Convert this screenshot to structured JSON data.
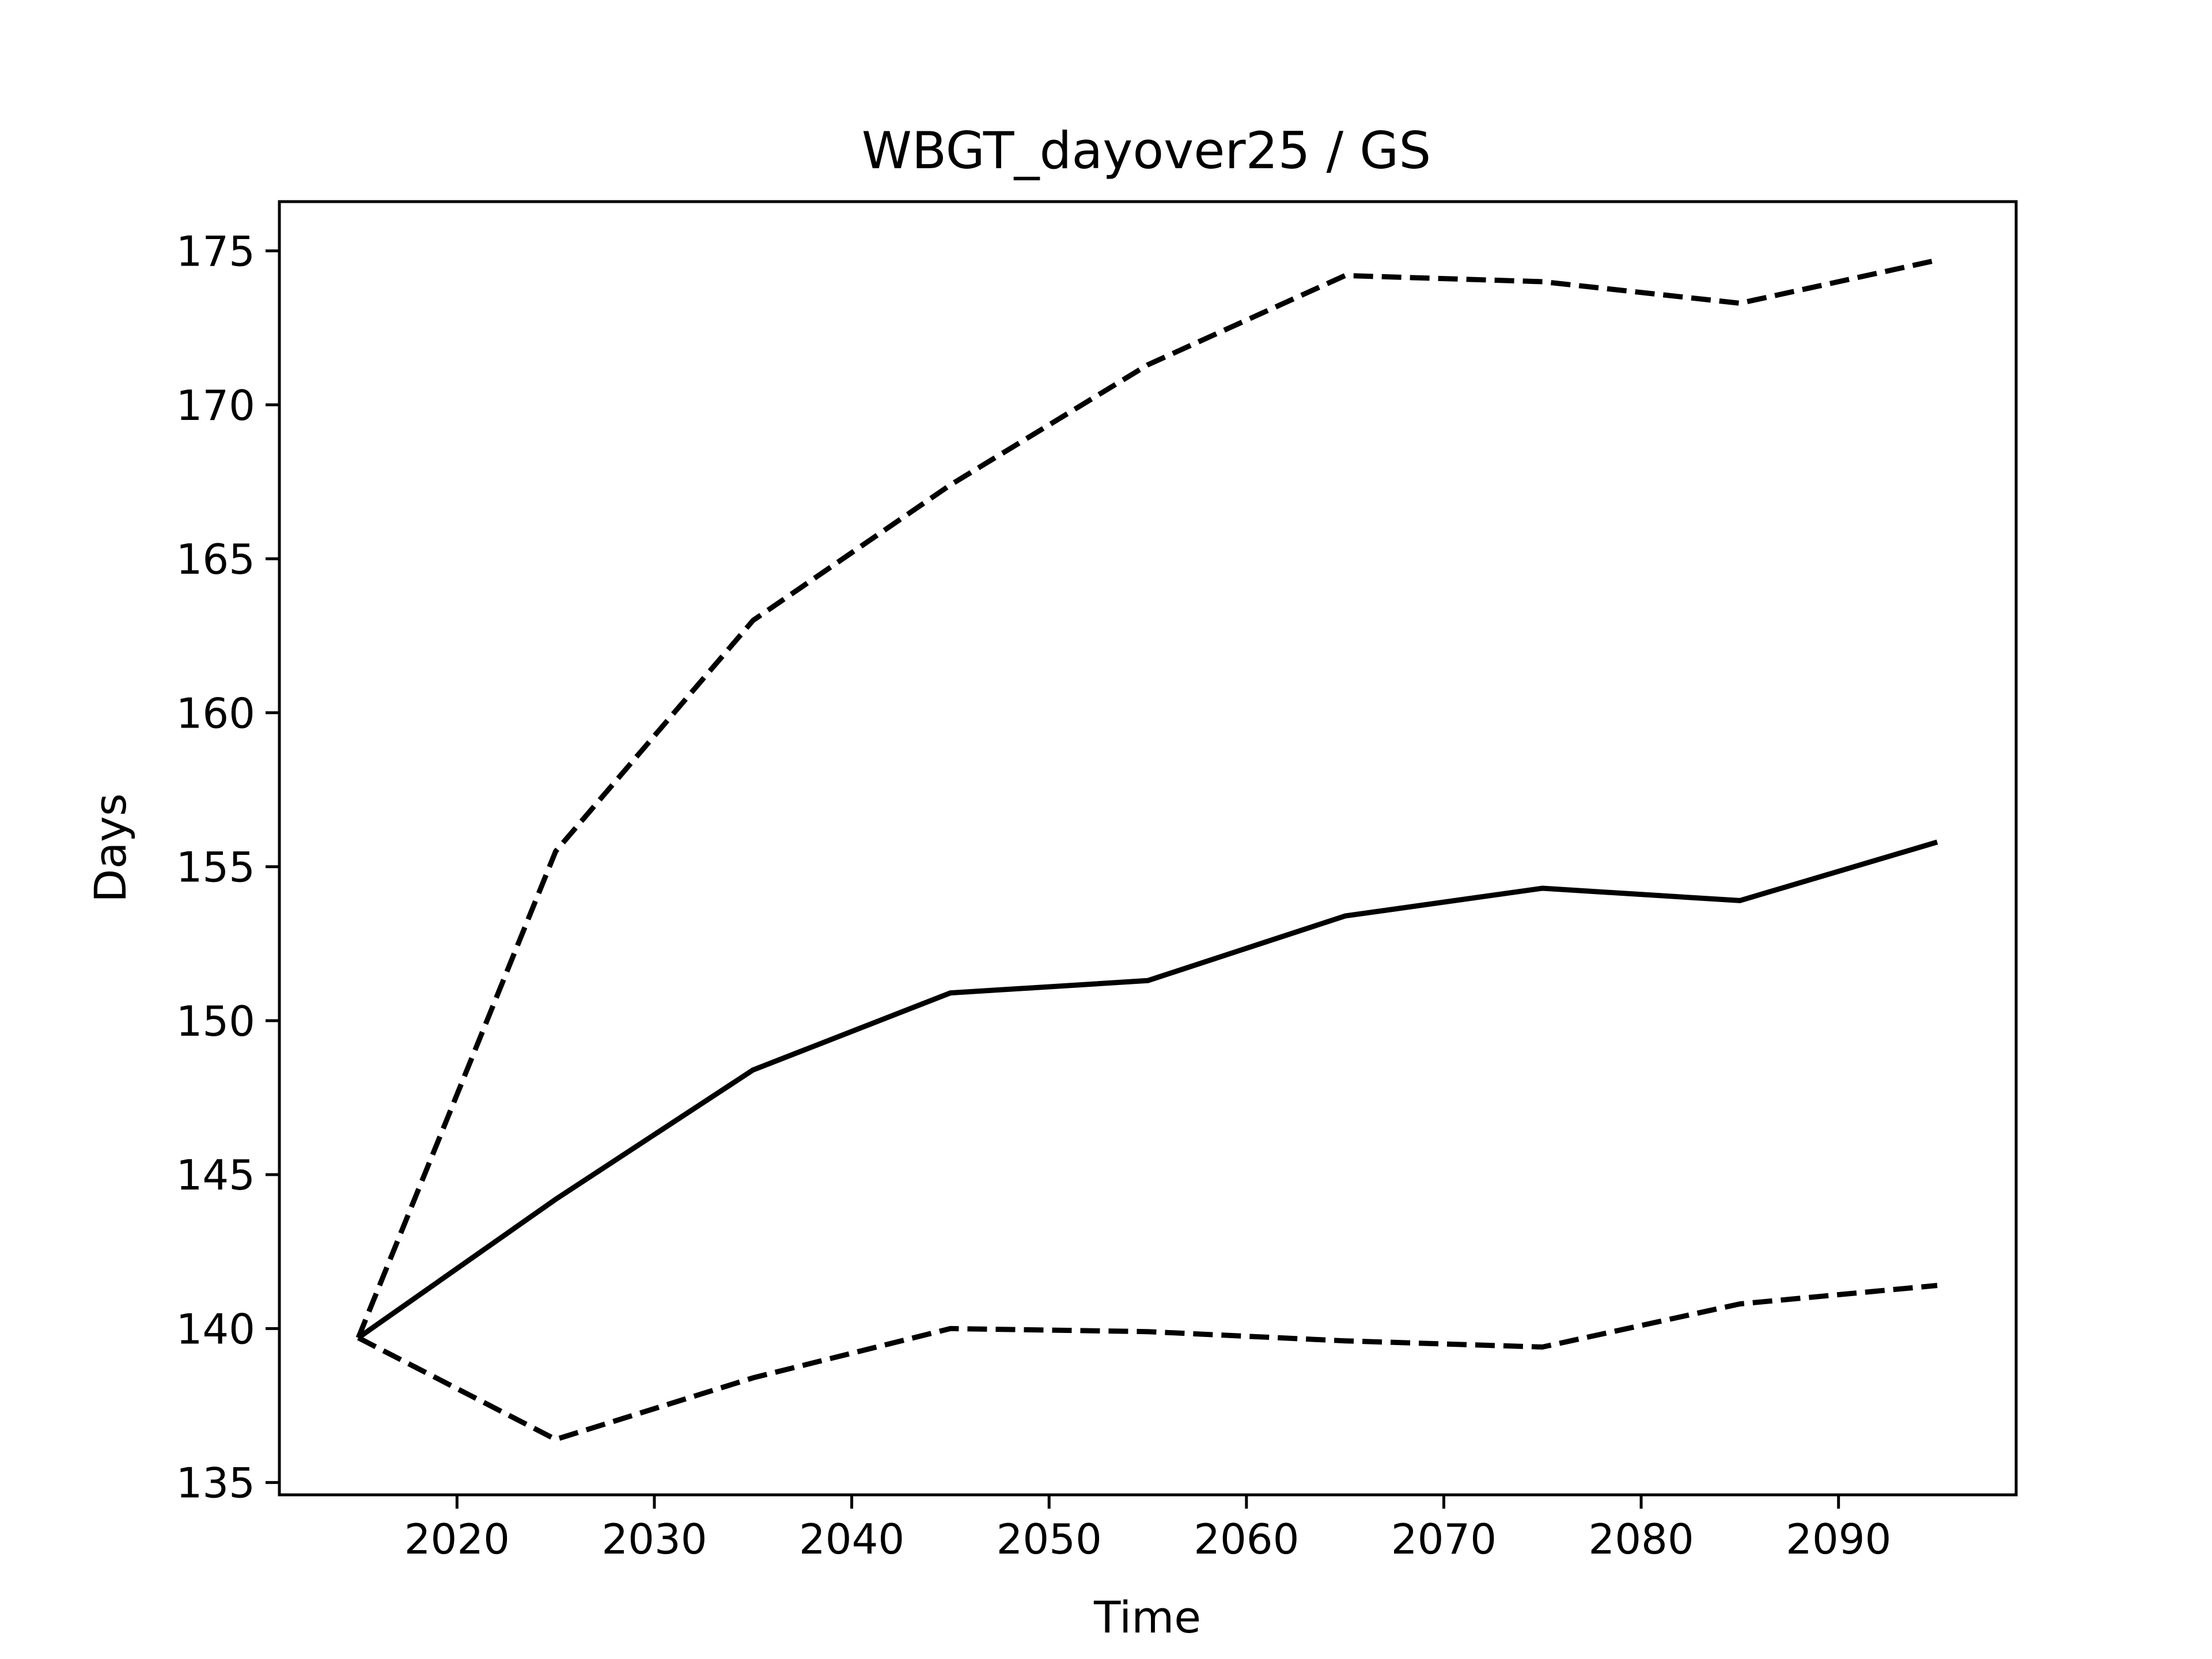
{
  "chart_data": {
    "type": "line",
    "title": "WBGT_dayover25 / GS",
    "xlabel": "Time",
    "ylabel": "Days",
    "xlim": [
      2011,
      2099
    ],
    "ylim": [
      134.6,
      176.6
    ],
    "xticks": [
      2020,
      2030,
      2040,
      2050,
      2060,
      2070,
      2080,
      2090
    ],
    "yticks": [
      135,
      140,
      145,
      150,
      155,
      160,
      165,
      170,
      175
    ],
    "grid": false,
    "legend": "none",
    "x": [
      2015,
      2025,
      2035,
      2045,
      2055,
      2065,
      2075,
      2085,
      2095
    ],
    "series": [
      {
        "values": [
          139.7,
          155.5,
          163.0,
          167.4,
          171.3,
          174.2,
          174.0,
          173.3,
          174.7
        ],
        "style": "dashed",
        "color": "#000000"
      },
      {
        "values": [
          139.7,
          144.2,
          148.4,
          150.9,
          151.3,
          153.4,
          154.3,
          153.9,
          155.8
        ],
        "style": "solid",
        "color": "#000000"
      },
      {
        "values": [
          139.7,
          136.4,
          138.4,
          140.0,
          139.9,
          139.6,
          139.4,
          140.8,
          141.4
        ],
        "style": "dashed",
        "color": "#000000"
      }
    ]
  }
}
